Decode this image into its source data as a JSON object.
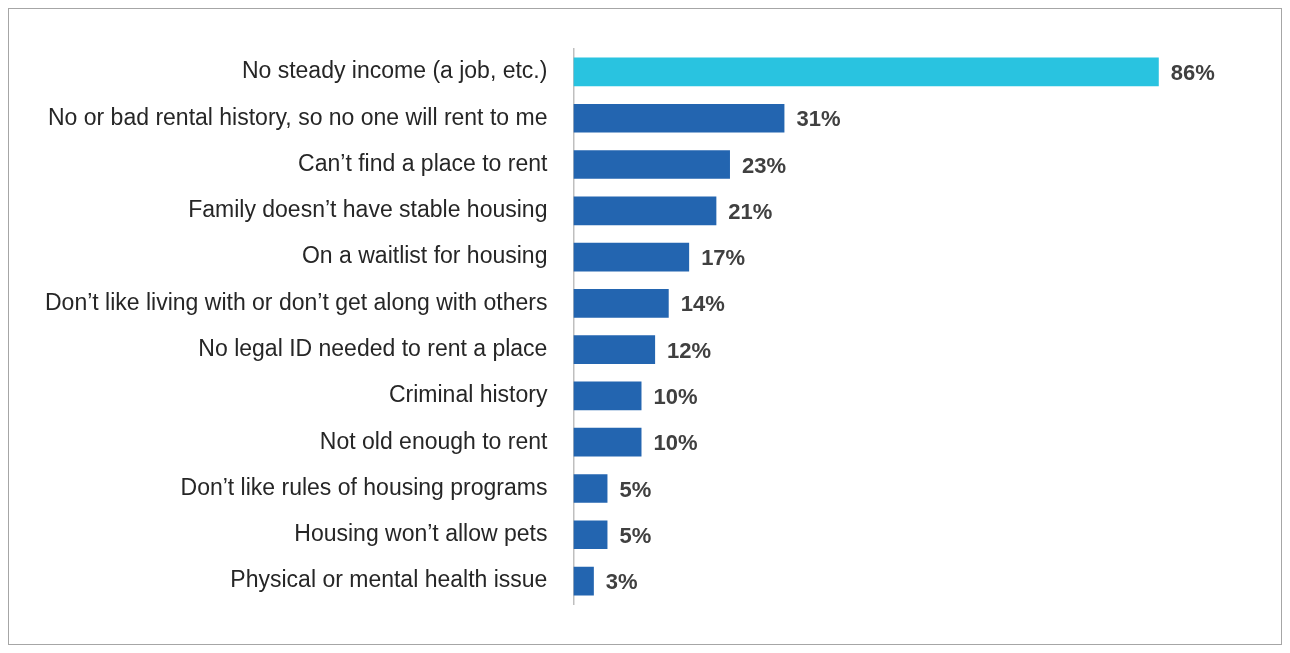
{
  "chart_data": {
    "type": "bar",
    "orientation": "horizontal",
    "categories": [
      "No steady income (a job, etc.)",
      "No or bad rental history, so no one will rent to me",
      "Can’t find a place to rent",
      "Family doesn’t have stable housing",
      "On a waitlist for housing",
      "Don’t like living with or don’t get along with others",
      "No legal ID needed to rent a place",
      "Criminal history",
      "Not old enough to rent",
      "Don’t like rules of housing programs",
      "Housing won’t allow pets",
      "Physical or mental health issue"
    ],
    "values": [
      86,
      31,
      23,
      21,
      17,
      14,
      12,
      10,
      10,
      5,
      5,
      3
    ],
    "colors": [
      "#29c3e0",
      "#2365b0",
      "#2365b0",
      "#2365b0",
      "#2365b0",
      "#2365b0",
      "#2365b0",
      "#2365b0",
      "#2365b0",
      "#2365b0",
      "#2365b0",
      "#2365b0"
    ],
    "value_labels": [
      "86%",
      "31%",
      "23%",
      "21%",
      "17%",
      "14%",
      "12%",
      "10%",
      "10%",
      "5%",
      "5%",
      "3%"
    ],
    "legend": false
  }
}
